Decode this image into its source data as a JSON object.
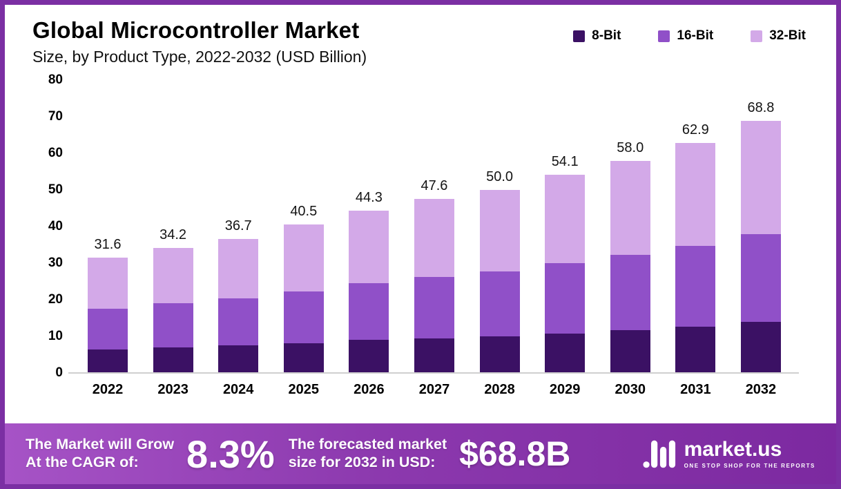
{
  "header": {
    "title": "Global Microcontroller Market",
    "subtitle": "Size, by Product Type, 2022-2032 (USD Billion)"
  },
  "chart_data": {
    "type": "bar",
    "stacked": true,
    "title": "Global Microcontroller Market Size, by Product Type, 2022-2032 (USD Billion)",
    "categories": [
      "2022",
      "2023",
      "2024",
      "2025",
      "2026",
      "2027",
      "2028",
      "2029",
      "2030",
      "2031",
      "2032"
    ],
    "series": [
      {
        "name": "8-Bit",
        "color": "#3b1164",
        "values": [
          6.5,
          7.0,
          7.5,
          8.2,
          9.0,
          9.5,
          10.0,
          10.8,
          11.7,
          12.6,
          13.9
        ]
      },
      {
        "name": "16-Bit",
        "color": "#9050c8",
        "values": [
          11.0,
          12.0,
          12.8,
          14.1,
          15.5,
          16.8,
          17.8,
          19.2,
          20.5,
          22.1,
          24.1
        ]
      },
      {
        "name": "32-Bit",
        "color": "#d3a9e8",
        "values": [
          14.1,
          15.2,
          16.4,
          18.2,
          19.8,
          21.3,
          22.2,
          24.1,
          25.8,
          28.2,
          30.8
        ]
      }
    ],
    "totals": [
      "31.6",
      "34.2",
      "36.7",
      "40.5",
      "44.3",
      "47.6",
      "50.0",
      "54.1",
      "58.0",
      "62.9",
      "68.8"
    ],
    "ylim": [
      0,
      80
    ],
    "yticks": [
      80,
      70,
      60,
      50,
      40,
      30,
      20,
      10,
      0
    ],
    "legend_position": "top-right",
    "grid": false,
    "xlabel": "",
    "ylabel": ""
  },
  "footer": {
    "cagr_label_line1": "The Market will Grow",
    "cagr_label_line2": "At the CAGR of:",
    "cagr_value": "8.3%",
    "forecast_label_line1": "The forecasted market",
    "forecast_label_line2": "size for 2032 in USD:",
    "forecast_value": "$68.8B",
    "brand_name": "market.us",
    "brand_tagline": "ONE STOP SHOP FOR THE REPORTS"
  },
  "colors": {
    "border": "#7b2fa3",
    "banner_gradient_start": "#a653c6",
    "banner_gradient_end": "#7c29a0",
    "axis_line": "#cfcfcf"
  }
}
